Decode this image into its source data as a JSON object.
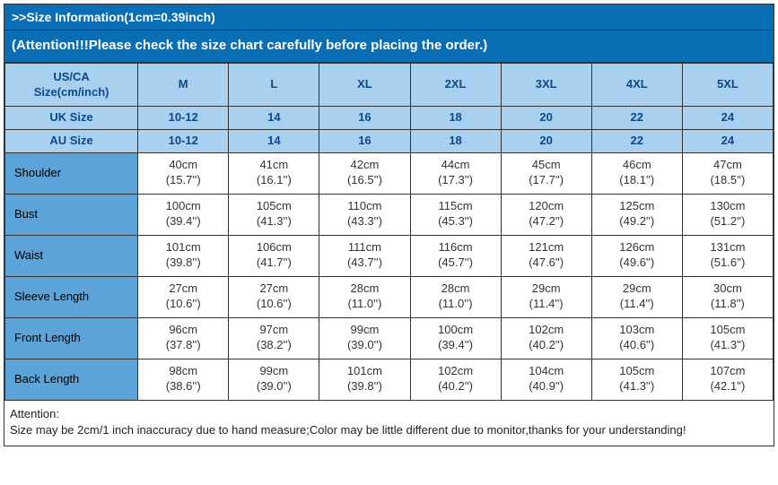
{
  "colors": {
    "header_bg": "#0a6eb4",
    "header_text": "#ffffff",
    "light_blue": "#a9d0ef",
    "mid_blue": "#5ba3d8",
    "dark_text": "#0a4a8a",
    "border": "#333333",
    "white": "#ffffff"
  },
  "header": {
    "line1": ">>Size Information(1cm=0.39inch)",
    "line2": "(Attention!!!Please check the size chart carefully before placing the order.)"
  },
  "columns": {
    "us_ca_label_l1": "US/CA",
    "us_ca_label_l2": "Size(cm/inch)",
    "sizes": [
      "M",
      "L",
      "XL",
      "2XL",
      "3XL",
      "4XL",
      "5XL"
    ]
  },
  "uk_row": {
    "label": "UK Size",
    "values": [
      "10-12",
      "14",
      "16",
      "18",
      "20",
      "22",
      "24"
    ]
  },
  "au_row": {
    "label": "AU Size",
    "values": [
      "10-12",
      "14",
      "16",
      "18",
      "20",
      "22",
      "24"
    ]
  },
  "rows": [
    {
      "label": "Shoulder",
      "cells": [
        [
          "40cm",
          "(15.7'')"
        ],
        [
          "41cm",
          "(16.1'')"
        ],
        [
          "42cm",
          "(16.5'')"
        ],
        [
          "44cm",
          "(17.3'')"
        ],
        [
          "45cm",
          "(17.7'')"
        ],
        [
          "46cm",
          "(18.1'')"
        ],
        [
          "47cm",
          "(18.5'')"
        ]
      ]
    },
    {
      "label": "Bust",
      "cells": [
        [
          "100cm",
          "(39.4'')"
        ],
        [
          "105cm",
          "(41.3'')"
        ],
        [
          "110cm",
          "(43.3'')"
        ],
        [
          "115cm",
          "(45.3'')"
        ],
        [
          "120cm",
          "(47.2'')"
        ],
        [
          "125cm",
          "(49.2'')"
        ],
        [
          "130cm",
          "(51.2'')"
        ]
      ]
    },
    {
      "label": "Waist",
      "cells": [
        [
          "101cm",
          "(39.8'')"
        ],
        [
          "106cm",
          "(41.7'')"
        ],
        [
          "111cm",
          "(43.7'')"
        ],
        [
          "116cm",
          "(45.7'')"
        ],
        [
          "121cm",
          "(47.6'')"
        ],
        [
          "126cm",
          "(49.6'')"
        ],
        [
          "131cm",
          "(51.6'')"
        ]
      ]
    },
    {
      "label": "Sleeve Length",
      "cells": [
        [
          "27cm",
          "(10.6'')"
        ],
        [
          "27cm",
          "(10.6'')"
        ],
        [
          "28cm",
          "(11.0'')"
        ],
        [
          "28cm",
          "(11.0'')"
        ],
        [
          "29cm",
          "(11.4'')"
        ],
        [
          "29cm",
          "(11.4'')"
        ],
        [
          "30cm",
          "(11.8'')"
        ]
      ]
    },
    {
      "label": "Front Length",
      "cells": [
        [
          "96cm",
          "(37.8'')"
        ],
        [
          "97cm",
          "(38.2'')"
        ],
        [
          "99cm",
          "(39.0'')"
        ],
        [
          "100cm",
          "(39.4'')"
        ],
        [
          "102cm",
          "(40.2'')"
        ],
        [
          "103cm",
          "(40.6'')"
        ],
        [
          "105cm",
          "(41.3'')"
        ]
      ]
    },
    {
      "label": "Back Length",
      "cells": [
        [
          "98cm",
          "(38.6'')"
        ],
        [
          "99cm",
          "(39.0'')"
        ],
        [
          "101cm",
          "(39.8'')"
        ],
        [
          "102cm",
          "(40.2'')"
        ],
        [
          "104cm",
          "(40.9'')"
        ],
        [
          "105cm",
          "(41.3'')"
        ],
        [
          "107cm",
          "(42.1'')"
        ]
      ]
    }
  ],
  "footer": {
    "line1": "Attention:",
    "line2": "Size may be 2cm/1 inch inaccuracy due to hand measure;Color may be little different due to monitor,thanks for your understanding!"
  }
}
